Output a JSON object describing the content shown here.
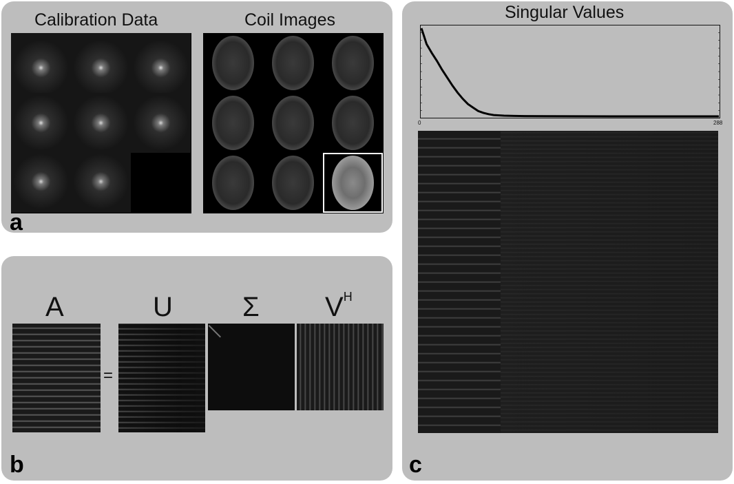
{
  "panel_a": {
    "label": "a",
    "calibration_title": "Calibration Data",
    "coil_title": "Coil Images"
  },
  "panel_b": {
    "label": "b",
    "matrix_labels": {
      "A": "A",
      "U": "U",
      "Sigma": "Σ",
      "V": "V",
      "V_superscript": "H"
    },
    "equals": "="
  },
  "panel_c": {
    "label": "c",
    "title": "Singular Values",
    "x_min_label": "0",
    "x_max_label": "288"
  },
  "chart_data": {
    "type": "line",
    "title": "Singular Values",
    "xlim": [
      0,
      288
    ],
    "series": [
      {
        "x": [
          0,
          2,
          5,
          10,
          15,
          20,
          25,
          30,
          35,
          40,
          45,
          50,
          55,
          60,
          65,
          70,
          80,
          90,
          100,
          120,
          150,
          200,
          250,
          288
        ],
        "y": [
          1.0,
          0.93,
          0.82,
          0.72,
          0.63,
          0.53,
          0.44,
          0.35,
          0.27,
          0.2,
          0.14,
          0.1,
          0.06,
          0.04,
          0.025,
          0.015,
          0.008,
          0.005,
          0.003,
          0.002,
          0.001,
          0.0,
          0.0,
          0.0
        ]
      }
    ]
  }
}
